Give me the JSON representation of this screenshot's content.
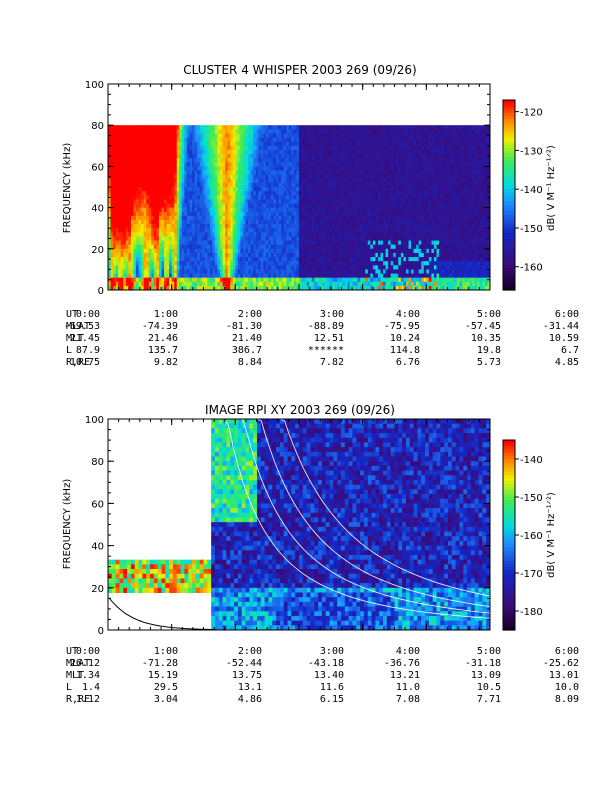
{
  "chart_data": [
    {
      "type": "heatmap",
      "title": "CLUSTER 4 WHISPER 2003 269 (09/26)",
      "ylabel": "FREQUENCY (kHz)",
      "ylim": [
        0,
        100
      ],
      "yticks": [
        "0",
        "20",
        "40",
        "60",
        "80",
        "100"
      ],
      "xlim_hours": [
        0,
        6
      ],
      "xticks": [
        "0:00",
        "1:00",
        "2:00",
        "3:00",
        "4:00",
        "5:00",
        "6:00"
      ],
      "colorbar": {
        "label": "dB( V M⁻¹ Hz⁻¹ᐟ²)",
        "ticks": [
          "-120",
          "-130",
          "-140",
          "-150",
          "-160"
        ],
        "tick_values": [
          -120,
          -130,
          -140,
          -150,
          -160
        ],
        "range": [
          -166,
          -117
        ]
      },
      "data_top_khz": 80,
      "ephemeris": {
        "labels": [
          "UT",
          "MLAT",
          "MLT",
          "L",
          "R,RE"
        ],
        "rows": [
          [
            "0:00",
            "1:00",
            "2:00",
            "3:00",
            "4:00",
            "5:00",
            "6:00"
          ],
          [
            "-69.53",
            "-74.39",
            "-81.30",
            "-88.89",
            "-75.95",
            "-57.45",
            "-31.44"
          ],
          [
            "21.45",
            "21.46",
            "21.40",
            "12.51",
            "10.24",
            "10.35",
            "10.59"
          ],
          [
            "87.9",
            "135.7",
            "386.7",
            "******",
            "114.8",
            "19.8",
            "6.7"
          ],
          [
            "10.75",
            "9.82",
            "8.84",
            "7.82",
            "6.76",
            "5.73",
            "4.85"
          ]
        ]
      }
    },
    {
      "type": "heatmap",
      "title": "IMAGE RPI XY 2003 269 (09/26)",
      "ylabel": "FREQUENCY (kHz)",
      "ylim": [
        0,
        100
      ],
      "yticks": [
        "0",
        "20",
        "40",
        "60",
        "80",
        "100"
      ],
      "xlim_hours": [
        0,
        6
      ],
      "xticks": [
        "0:00",
        "1:00",
        "2:00",
        "3:00",
        "4:00",
        "5:00",
        "6:00"
      ],
      "colorbar": {
        "label": "dB( V M⁻¹ Hz⁻¹ᐟ²)",
        "ticks": [
          "-140",
          "-150",
          "-160",
          "-170",
          "-180"
        ],
        "tick_values": [
          -140,
          -150,
          -160,
          -170,
          -180
        ],
        "range": [
          -185,
          -135
        ]
      },
      "ephemeris": {
        "labels": [
          "UT",
          "MLAT",
          "MLT",
          "L",
          "R,RE"
        ],
        "rows": [
          [
            "0:00",
            "1:00",
            "2:00",
            "3:00",
            "4:00",
            "5:00",
            "6:00"
          ],
          [
            "26.12",
            "-71.28",
            "-52.44",
            "-43.18",
            "-36.76",
            "-31.18",
            "-25.62"
          ],
          [
            "1.34",
            "15.19",
            "13.75",
            "13.40",
            "13.21",
            "13.09",
            "13.01"
          ],
          [
            "1.4",
            "29.5",
            "13.1",
            "11.6",
            "11.0",
            "10.5",
            "10.0"
          ],
          [
            "1.12",
            "3.04",
            "4.86",
            "6.15",
            "7.08",
            "7.71",
            "8.09"
          ]
        ]
      }
    }
  ]
}
